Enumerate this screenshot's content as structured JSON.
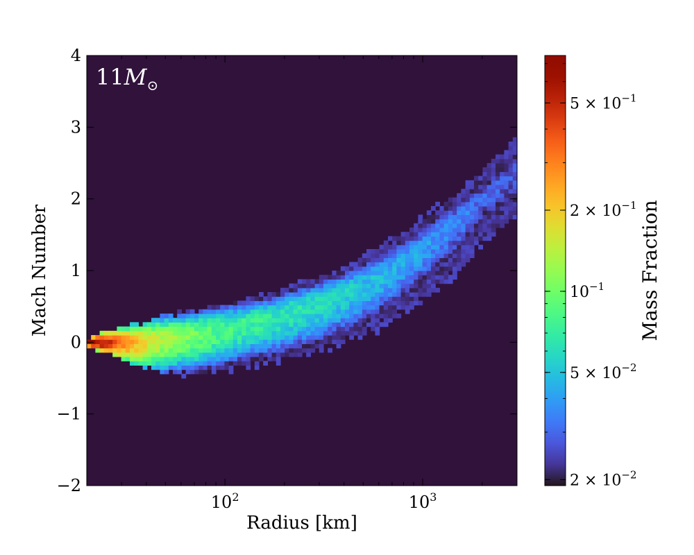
{
  "chart_data": {
    "type": "heatmap",
    "annotation": {
      "number": "11",
      "symbol": "M",
      "subscript": "⊙"
    },
    "xlabel": "Radius [km]",
    "ylabel": "Mach Number",
    "x_scale": "log",
    "xlim": [
      20,
      3000
    ],
    "ylim": [
      -2,
      4
    ],
    "x_ticks": [
      {
        "value": 100,
        "base": "10",
        "exp": "2"
      },
      {
        "value": 1000,
        "base": "10",
        "exp": "3"
      }
    ],
    "y_ticks": [
      {
        "value": -2,
        "label": "−2"
      },
      {
        "value": -1,
        "label": "−1"
      },
      {
        "value": 0,
        "label": "0"
      },
      {
        "value": 1,
        "label": "1"
      },
      {
        "value": 2,
        "label": "2"
      },
      {
        "value": 3,
        "label": "3"
      },
      {
        "value": 4,
        "label": "4"
      }
    ],
    "background_color": "#30123b",
    "colorbar": {
      "label": "Mass Fraction",
      "scale": "log",
      "range": [
        0.019,
        0.75
      ],
      "colormap": "turbo",
      "ticks": [
        {
          "value": 0.5,
          "mantissa": "5 × ",
          "base": "10",
          "exp": "−1"
        },
        {
          "value": 0.2,
          "mantissa": "2 × ",
          "base": "10",
          "exp": "−1"
        },
        {
          "value": 0.1,
          "mantissa": "",
          "base": "10",
          "exp": "−1"
        },
        {
          "value": 0.05,
          "mantissa": "5 × ",
          "base": "10",
          "exp": "−2"
        },
        {
          "value": 0.02,
          "mantissa": "2 × ",
          "base": "10",
          "exp": "−2"
        }
      ]
    },
    "band": {
      "description_points_radius_km": [
        20,
        25,
        30,
        40,
        50,
        70,
        100,
        150,
        200,
        300,
        400,
        500,
        700,
        1000,
        1500,
        2000,
        3000
      ],
      "center_mach": [
        0.0,
        0.0,
        0.0,
        0.02,
        0.05,
        0.1,
        0.18,
        0.3,
        0.4,
        0.55,
        0.68,
        0.8,
        1.0,
        1.3,
        1.7,
        2.0,
        2.4
      ],
      "upper_mach": [
        0.05,
        0.15,
        0.2,
        0.3,
        0.38,
        0.45,
        0.55,
        0.65,
        0.75,
        0.92,
        1.05,
        1.2,
        1.45,
        1.75,
        2.1,
        2.4,
        2.85
      ],
      "lower_mach": [
        -0.05,
        -0.15,
        -0.25,
        -0.38,
        -0.42,
        -0.42,
        -0.38,
        -0.3,
        -0.25,
        -0.12,
        0.0,
        0.1,
        0.3,
        0.6,
        1.0,
        1.4,
        1.75
      ],
      "peak_mass_fraction": [
        0.72,
        0.5,
        0.3,
        0.18,
        0.13,
        0.1,
        0.08,
        0.07,
        0.065,
        0.06,
        0.055,
        0.05,
        0.045,
        0.04,
        0.035,
        0.03,
        0.028
      ]
    }
  }
}
